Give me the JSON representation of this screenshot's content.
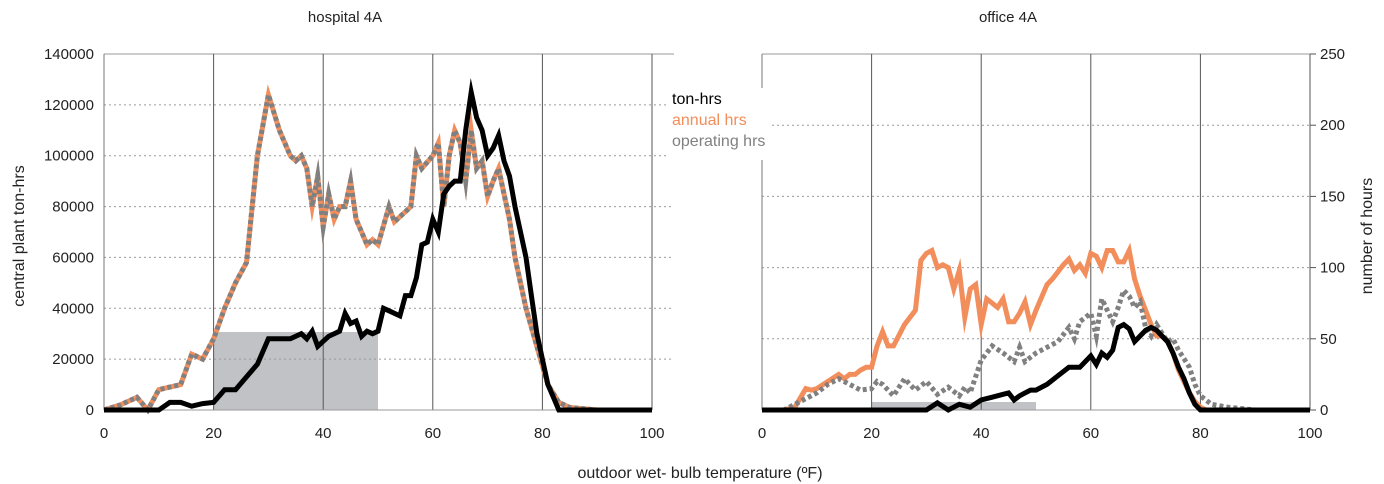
{
  "figure": {
    "xlabel": "outdoor wet- bulb temperature (ºF)",
    "ylabel_left": "central plant ton-hrs",
    "ylabel_right": "number of hours"
  },
  "legend": [
    {
      "label": "ton-hrs",
      "color": "#000000"
    },
    {
      "label": "annual hrs",
      "color": "#f28e5c"
    },
    {
      "label": "operating hrs",
      "color": "#808080"
    }
  ],
  "chart_data": [
    {
      "type": "line",
      "title": "hospital 4A",
      "xlim": [
        0,
        100
      ],
      "xticks": [
        "0",
        "20",
        "40",
        "60",
        "80",
        "100"
      ],
      "ylim": [
        0,
        140000
      ],
      "yticks": [
        "0",
        "20000",
        "40000",
        "60000",
        "80000",
        "100000",
        "120000",
        "140000"
      ],
      "ylabel": "central plant ton-hrs",
      "shaded_region": {
        "x0": 20,
        "x1": 50
      },
      "series": [
        {
          "name": "ton-hrs",
          "color": "#000000",
          "style": "solid",
          "x": [
            0,
            5,
            10,
            12,
            14,
            16,
            18,
            20,
            22,
            24,
            26,
            28,
            29,
            30,
            32,
            34,
            36,
            37,
            38,
            39,
            40,
            41,
            42,
            43,
            44,
            45,
            46,
            47,
            48,
            49,
            50,
            51,
            52,
            54,
            55,
            56,
            57,
            58,
            59,
            60,
            61,
            62,
            63,
            64,
            65,
            66,
            67,
            68,
            69,
            70,
            71,
            72,
            73,
            74,
            75,
            76,
            77,
            78,
            79,
            80,
            81,
            82,
            83,
            85,
            90,
            95,
            100
          ],
          "y": [
            0,
            0,
            0,
            3000,
            3000,
            1500,
            2500,
            3000,
            8000,
            8000,
            13000,
            18000,
            23000,
            28000,
            28000,
            28000,
            30000,
            28000,
            31000,
            25000,
            27000,
            29000,
            30000,
            31000,
            38000,
            34000,
            35000,
            29000,
            31000,
            30000,
            31000,
            40000,
            39000,
            37000,
            45000,
            45000,
            52000,
            65000,
            66000,
            75000,
            70000,
            85000,
            88000,
            90000,
            90000,
            110000,
            125000,
            115000,
            110000,
            100000,
            103000,
            108000,
            98000,
            92000,
            80000,
            70000,
            60000,
            45000,
            30000,
            20000,
            10000,
            5000,
            0,
            0,
            0,
            0,
            0
          ]
        },
        {
          "name": "annual hrs",
          "color": "#f28e5c",
          "style": "solid",
          "x": [
            0,
            3,
            6,
            8,
            10,
            12,
            14,
            16,
            18,
            20,
            22,
            24,
            26,
            28,
            30,
            32,
            34,
            35,
            36,
            37,
            38,
            39,
            40,
            41,
            42,
            43,
            44,
            45,
            46,
            47,
            48,
            49,
            50,
            52,
            53,
            55,
            56,
            57,
            58,
            60,
            61,
            62,
            63,
            64,
            65,
            66,
            67,
            68,
            69,
            70,
            71,
            72,
            73,
            74,
            75,
            77,
            79,
            81,
            83,
            85,
            90,
            95,
            100
          ],
          "y": [
            0,
            2000,
            5000,
            0,
            8000,
            9000,
            10000,
            22000,
            20000,
            28000,
            40000,
            50000,
            58000,
            100000,
            124000,
            110000,
            100000,
            98000,
            100000,
            95000,
            80000,
            92000,
            72000,
            85000,
            75000,
            80000,
            80000,
            90000,
            75000,
            70000,
            65000,
            67000,
            65000,
            80000,
            74000,
            78000,
            80000,
            100000,
            95000,
            100000,
            105000,
            80000,
            100000,
            110000,
            105000,
            90000,
            110000,
            95000,
            98000,
            84000,
            90000,
            95000,
            85000,
            75000,
            60000,
            40000,
            25000,
            10000,
            3000,
            1000,
            0,
            0,
            0
          ]
        },
        {
          "name": "operating hrs",
          "color": "#808080",
          "style": "dashed",
          "x": [
            0,
            3,
            6,
            8,
            10,
            12,
            14,
            16,
            18,
            20,
            22,
            24,
            26,
            28,
            30,
            32,
            34,
            35,
            36,
            37,
            38,
            39,
            40,
            41,
            42,
            43,
            44,
            45,
            46,
            47,
            48,
            49,
            50,
            52,
            53,
            55,
            56,
            57,
            58,
            60,
            61,
            62,
            63,
            64,
            65,
            66,
            67,
            68,
            69,
            70,
            71,
            72,
            73,
            74,
            75,
            77,
            79,
            81,
            83,
            85,
            90,
            95,
            100
          ],
          "y": [
            0,
            2000,
            5000,
            0,
            8000,
            9000,
            10000,
            22000,
            20000,
            28000,
            40000,
            50000,
            58000,
            100000,
            124000,
            110000,
            100000,
            98000,
            100000,
            95000,
            80000,
            92000,
            72000,
            85000,
            75000,
            80000,
            80000,
            90000,
            75000,
            70000,
            65000,
            67000,
            65000,
            80000,
            74000,
            78000,
            80000,
            100000,
            95000,
            100000,
            105000,
            80000,
            100000,
            110000,
            105000,
            90000,
            110000,
            95000,
            98000,
            84000,
            90000,
            95000,
            85000,
            75000,
            60000,
            40000,
            25000,
            10000,
            3000,
            1000,
            0,
            0,
            0
          ]
        }
      ]
    },
    {
      "type": "line",
      "title": "office 4A",
      "xlim": [
        0,
        100
      ],
      "xticks": [
        "0",
        "20",
        "40",
        "60",
        "80",
        "100"
      ],
      "ylim": [
        0,
        250
      ],
      "yticks": [
        "0",
        "50",
        "100",
        "150",
        "200",
        "250"
      ],
      "ylabel": "number of hours",
      "shaded_region": {
        "x0": 20,
        "x1": 50
      },
      "series": [
        {
          "name": "ton-hrs",
          "color": "#000000",
          "style": "solid",
          "x": [
            0,
            30,
            32,
            34,
            36,
            38,
            40,
            42,
            44,
            45,
            46,
            47,
            48,
            49,
            50,
            52,
            54,
            56,
            58,
            60,
            61,
            62,
            63,
            64,
            65,
            66,
            67,
            68,
            69,
            70,
            71,
            72,
            73,
            74,
            75,
            76,
            77,
            78,
            79,
            80,
            82,
            85,
            90,
            95,
            100
          ],
          "y": [
            0,
            0,
            5,
            0,
            4,
            2,
            7,
            9,
            11,
            12,
            7,
            10,
            12,
            14,
            14,
            18,
            24,
            30,
            30,
            38,
            32,
            40,
            37,
            42,
            58,
            60,
            57,
            48,
            52,
            56,
            58,
            56,
            52,
            48,
            40,
            30,
            22,
            12,
            4,
            0,
            0,
            0,
            0,
            0,
            0
          ]
        },
        {
          "name": "annual hrs",
          "color": "#f28e5c",
          "style": "solid",
          "x": [
            0,
            4,
            6,
            8,
            9,
            10,
            12,
            14,
            15,
            16,
            17,
            18,
            19,
            20,
            21,
            22,
            23,
            24,
            26,
            28,
            29,
            30,
            31,
            32,
            33,
            34,
            35,
            36,
            37,
            38,
            39,
            40,
            41,
            42,
            43,
            44,
            45,
            46,
            47,
            48,
            49,
            50,
            52,
            53,
            55,
            56,
            57,
            58,
            59,
            60,
            61,
            62,
            63,
            64,
            65,
            66,
            67,
            68,
            69,
            70,
            71,
            72,
            73,
            74,
            75,
            76,
            77,
            78,
            79,
            80,
            81,
            82,
            85,
            90,
            95,
            100
          ],
          "y": [
            0,
            0,
            2,
            15,
            14,
            15,
            20,
            25,
            22,
            25,
            25,
            28,
            30,
            30,
            45,
            55,
            45,
            45,
            60,
            70,
            105,
            110,
            112,
            100,
            102,
            100,
            85,
            98,
            65,
            85,
            88,
            60,
            78,
            75,
            72,
            78,
            62,
            62,
            68,
            76,
            60,
            70,
            88,
            92,
            102,
            106,
            98,
            102,
            96,
            110,
            108,
            100,
            112,
            112,
            104,
            104,
            112,
            92,
            80,
            70,
            60,
            52,
            52,
            48,
            40,
            28,
            20,
            12,
            6,
            2,
            0,
            0,
            0,
            0,
            0,
            0
          ]
        },
        {
          "name": "operating hrs",
          "color": "#808080",
          "style": "dashed",
          "x": [
            0,
            4,
            6,
            8,
            10,
            12,
            14,
            16,
            18,
            20,
            21,
            22,
            24,
            26,
            28,
            30,
            32,
            34,
            36,
            37,
            38,
            40,
            42,
            44,
            46,
            47,
            48,
            50,
            52,
            54,
            56,
            57,
            58,
            60,
            61,
            62,
            64,
            65,
            66,
            67,
            68,
            69,
            70,
            71,
            72,
            73,
            74,
            75,
            76,
            77,
            78,
            79,
            80,
            82,
            85,
            90,
            95,
            100
          ],
          "y": [
            0,
            0,
            4,
            8,
            12,
            18,
            22,
            18,
            14,
            15,
            20,
            18,
            10,
            22,
            14,
            20,
            11,
            16,
            10,
            16,
            12,
            35,
            45,
            40,
            34,
            44,
            34,
            40,
            44,
            48,
            58,
            50,
            62,
            68,
            52,
            78,
            62,
            72,
            84,
            80,
            72,
            76,
            58,
            52,
            60,
            54,
            48,
            50,
            42,
            36,
            30,
            18,
            10,
            4,
            2,
            0,
            0,
            0
          ]
        }
      ]
    }
  ]
}
